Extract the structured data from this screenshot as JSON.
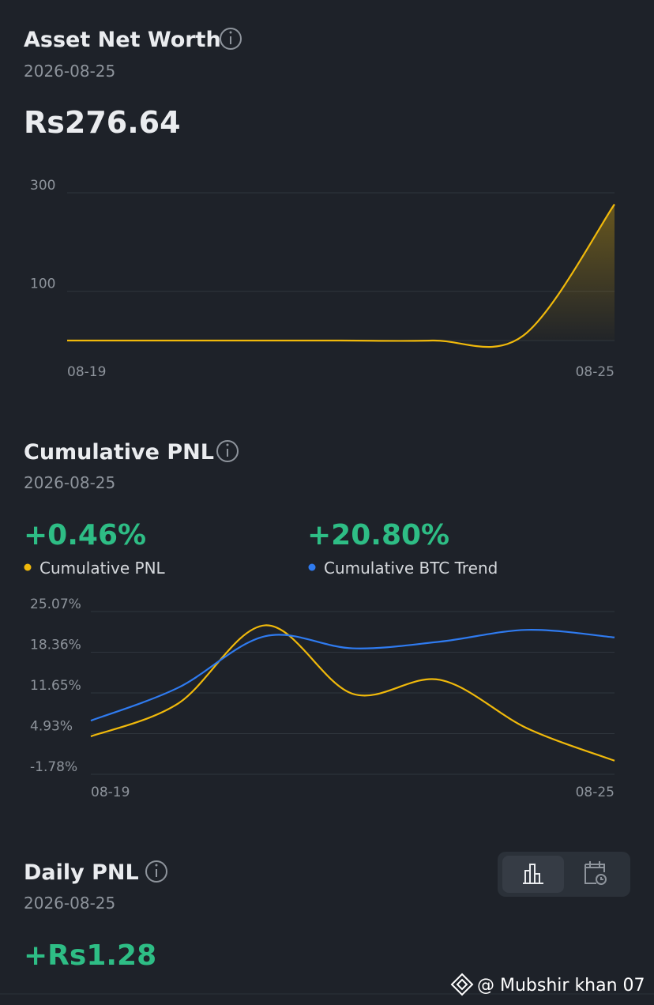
{
  "chart_data": [
    {
      "type": "line",
      "title": "Asset Net Worth",
      "subtitle": "2026-08-25",
      "headline": "Rs276.64",
      "categories": [
        "08-19",
        null,
        null,
        null,
        null,
        null,
        "08-25"
      ],
      "values": [
        0,
        0,
        0,
        0,
        0,
        10,
        276.64
      ],
      "color": "#f0b90b",
      "area": true,
      "ylim": [
        0,
        300
      ],
      "yticks": [
        100,
        300
      ],
      "grid": true
    },
    {
      "type": "line",
      "title": "Cumulative PNL",
      "subtitle": "2026-08-25",
      "headlines": [
        "+0.46%",
        "+20.80%"
      ],
      "categories": [
        "08-19",
        null,
        null,
        null,
        null,
        null,
        "08-25"
      ],
      "series": [
        {
          "name": "Cumulative PNL",
          "color": "#f0b90b",
          "values": [
            4.47,
            9.9,
            22.8,
            11.5,
            13.8,
            5.8,
            0.46
          ]
        },
        {
          "name": "Cumulative BTC Trend",
          "color": "#2f7bf0",
          "values": [
            7.07,
            12.5,
            21.0,
            19.0,
            20.1,
            22.05,
            20.8
          ]
        }
      ],
      "ylim": [
        -1.78,
        25.07
      ],
      "yticks": [
        {
          "value": -1.78,
          "label": "-1.78%"
        },
        {
          "value": 4.93,
          "label": "4.93%"
        },
        {
          "value": 11.65,
          "label": "11.65%"
        },
        {
          "value": 18.36,
          "label": "18.36%"
        },
        {
          "value": 25.07,
          "label": "25.07%"
        }
      ],
      "grid": true
    }
  ],
  "daily_pnl": {
    "title": "Daily PNL",
    "subtitle": "2026-08-25",
    "value": "+Rs1.28"
  },
  "watermark": "@ Mubshir khan 07"
}
